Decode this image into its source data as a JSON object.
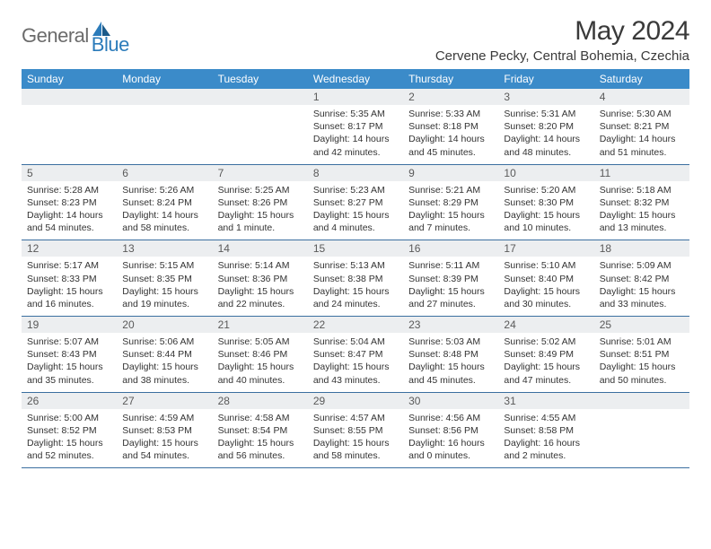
{
  "logo": {
    "part1": "General",
    "part2": "Blue"
  },
  "title": "May 2024",
  "location": "Cervene Pecky, Central Bohemia, Czechia",
  "colors": {
    "header_bg": "#3b8bc9",
    "header_text": "#ffffff",
    "daynum_bg": "#eceef0",
    "row_border": "#3b6fa0",
    "logo_gray": "#6b6b6b",
    "logo_blue": "#2b7bba"
  },
  "weekdays": [
    "Sunday",
    "Monday",
    "Tuesday",
    "Wednesday",
    "Thursday",
    "Friday",
    "Saturday"
  ],
  "weeks": [
    [
      null,
      null,
      null,
      {
        "n": "1",
        "sr": "5:35 AM",
        "ss": "8:17 PM",
        "dl": "14 hours and 42 minutes."
      },
      {
        "n": "2",
        "sr": "5:33 AM",
        "ss": "8:18 PM",
        "dl": "14 hours and 45 minutes."
      },
      {
        "n": "3",
        "sr": "5:31 AM",
        "ss": "8:20 PM",
        "dl": "14 hours and 48 minutes."
      },
      {
        "n": "4",
        "sr": "5:30 AM",
        "ss": "8:21 PM",
        "dl": "14 hours and 51 minutes."
      }
    ],
    [
      {
        "n": "5",
        "sr": "5:28 AM",
        "ss": "8:23 PM",
        "dl": "14 hours and 54 minutes."
      },
      {
        "n": "6",
        "sr": "5:26 AM",
        "ss": "8:24 PM",
        "dl": "14 hours and 58 minutes."
      },
      {
        "n": "7",
        "sr": "5:25 AM",
        "ss": "8:26 PM",
        "dl": "15 hours and 1 minute."
      },
      {
        "n": "8",
        "sr": "5:23 AM",
        "ss": "8:27 PM",
        "dl": "15 hours and 4 minutes."
      },
      {
        "n": "9",
        "sr": "5:21 AM",
        "ss": "8:29 PM",
        "dl": "15 hours and 7 minutes."
      },
      {
        "n": "10",
        "sr": "5:20 AM",
        "ss": "8:30 PM",
        "dl": "15 hours and 10 minutes."
      },
      {
        "n": "11",
        "sr": "5:18 AM",
        "ss": "8:32 PM",
        "dl": "15 hours and 13 minutes."
      }
    ],
    [
      {
        "n": "12",
        "sr": "5:17 AM",
        "ss": "8:33 PM",
        "dl": "15 hours and 16 minutes."
      },
      {
        "n": "13",
        "sr": "5:15 AM",
        "ss": "8:35 PM",
        "dl": "15 hours and 19 minutes."
      },
      {
        "n": "14",
        "sr": "5:14 AM",
        "ss": "8:36 PM",
        "dl": "15 hours and 22 minutes."
      },
      {
        "n": "15",
        "sr": "5:13 AM",
        "ss": "8:38 PM",
        "dl": "15 hours and 24 minutes."
      },
      {
        "n": "16",
        "sr": "5:11 AM",
        "ss": "8:39 PM",
        "dl": "15 hours and 27 minutes."
      },
      {
        "n": "17",
        "sr": "5:10 AM",
        "ss": "8:40 PM",
        "dl": "15 hours and 30 minutes."
      },
      {
        "n": "18",
        "sr": "5:09 AM",
        "ss": "8:42 PM",
        "dl": "15 hours and 33 minutes."
      }
    ],
    [
      {
        "n": "19",
        "sr": "5:07 AM",
        "ss": "8:43 PM",
        "dl": "15 hours and 35 minutes."
      },
      {
        "n": "20",
        "sr": "5:06 AM",
        "ss": "8:44 PM",
        "dl": "15 hours and 38 minutes."
      },
      {
        "n": "21",
        "sr": "5:05 AM",
        "ss": "8:46 PM",
        "dl": "15 hours and 40 minutes."
      },
      {
        "n": "22",
        "sr": "5:04 AM",
        "ss": "8:47 PM",
        "dl": "15 hours and 43 minutes."
      },
      {
        "n": "23",
        "sr": "5:03 AM",
        "ss": "8:48 PM",
        "dl": "15 hours and 45 minutes."
      },
      {
        "n": "24",
        "sr": "5:02 AM",
        "ss": "8:49 PM",
        "dl": "15 hours and 47 minutes."
      },
      {
        "n": "25",
        "sr": "5:01 AM",
        "ss": "8:51 PM",
        "dl": "15 hours and 50 minutes."
      }
    ],
    [
      {
        "n": "26",
        "sr": "5:00 AM",
        "ss": "8:52 PM",
        "dl": "15 hours and 52 minutes."
      },
      {
        "n": "27",
        "sr": "4:59 AM",
        "ss": "8:53 PM",
        "dl": "15 hours and 54 minutes."
      },
      {
        "n": "28",
        "sr": "4:58 AM",
        "ss": "8:54 PM",
        "dl": "15 hours and 56 minutes."
      },
      {
        "n": "29",
        "sr": "4:57 AM",
        "ss": "8:55 PM",
        "dl": "15 hours and 58 minutes."
      },
      {
        "n": "30",
        "sr": "4:56 AM",
        "ss": "8:56 PM",
        "dl": "16 hours and 0 minutes."
      },
      {
        "n": "31",
        "sr": "4:55 AM",
        "ss": "8:58 PM",
        "dl": "16 hours and 2 minutes."
      },
      null
    ]
  ]
}
